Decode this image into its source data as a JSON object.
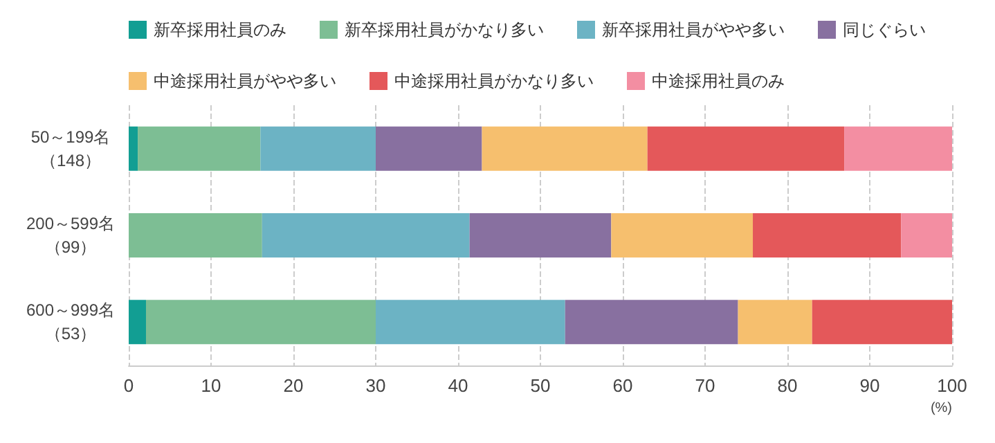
{
  "chart_data": {
    "type": "bar",
    "orientation": "horizontal",
    "stacked": true,
    "legend": "top",
    "grid": "x",
    "xlabel": "(%)",
    "categories": [
      "50～199名（148）",
      "200～599名（99）",
      "600～999名（53）"
    ],
    "xlim": [
      0,
      100
    ],
    "xticks": [
      0,
      10,
      20,
      30,
      40,
      50,
      60,
      70,
      80,
      90,
      100
    ],
    "series": [
      {
        "name": "新卒採用社員のみ",
        "color": "#129e93",
        "values": [
          1.1,
          0,
          2.1
        ]
      },
      {
        "name": "新卒採用社員がかなり多い",
        "color": "#7dbe94",
        "values": [
          14.9,
          16.2,
          27.9
        ]
      },
      {
        "name": "新卒採用社員がやや多い",
        "color": "#6cb3c4",
        "values": [
          14.0,
          25.2,
          23.0
        ]
      },
      {
        "name": "同じぐらい",
        "color": "#8870a0",
        "values": [
          12.9,
          17.2,
          21.0
        ]
      },
      {
        "name": "中途採用社員がやや多い",
        "color": "#f6bf6e",
        "values": [
          20.1,
          17.2,
          9.0
        ]
      },
      {
        "name": "中途採用社員がかなり多い",
        "color": "#e4585a",
        "values": [
          23.9,
          18.0,
          17.0
        ]
      },
      {
        "name": "中途採用社員のみ",
        "color": "#f38ea2",
        "values": [
          13.1,
          6.2,
          0
        ]
      }
    ]
  }
}
